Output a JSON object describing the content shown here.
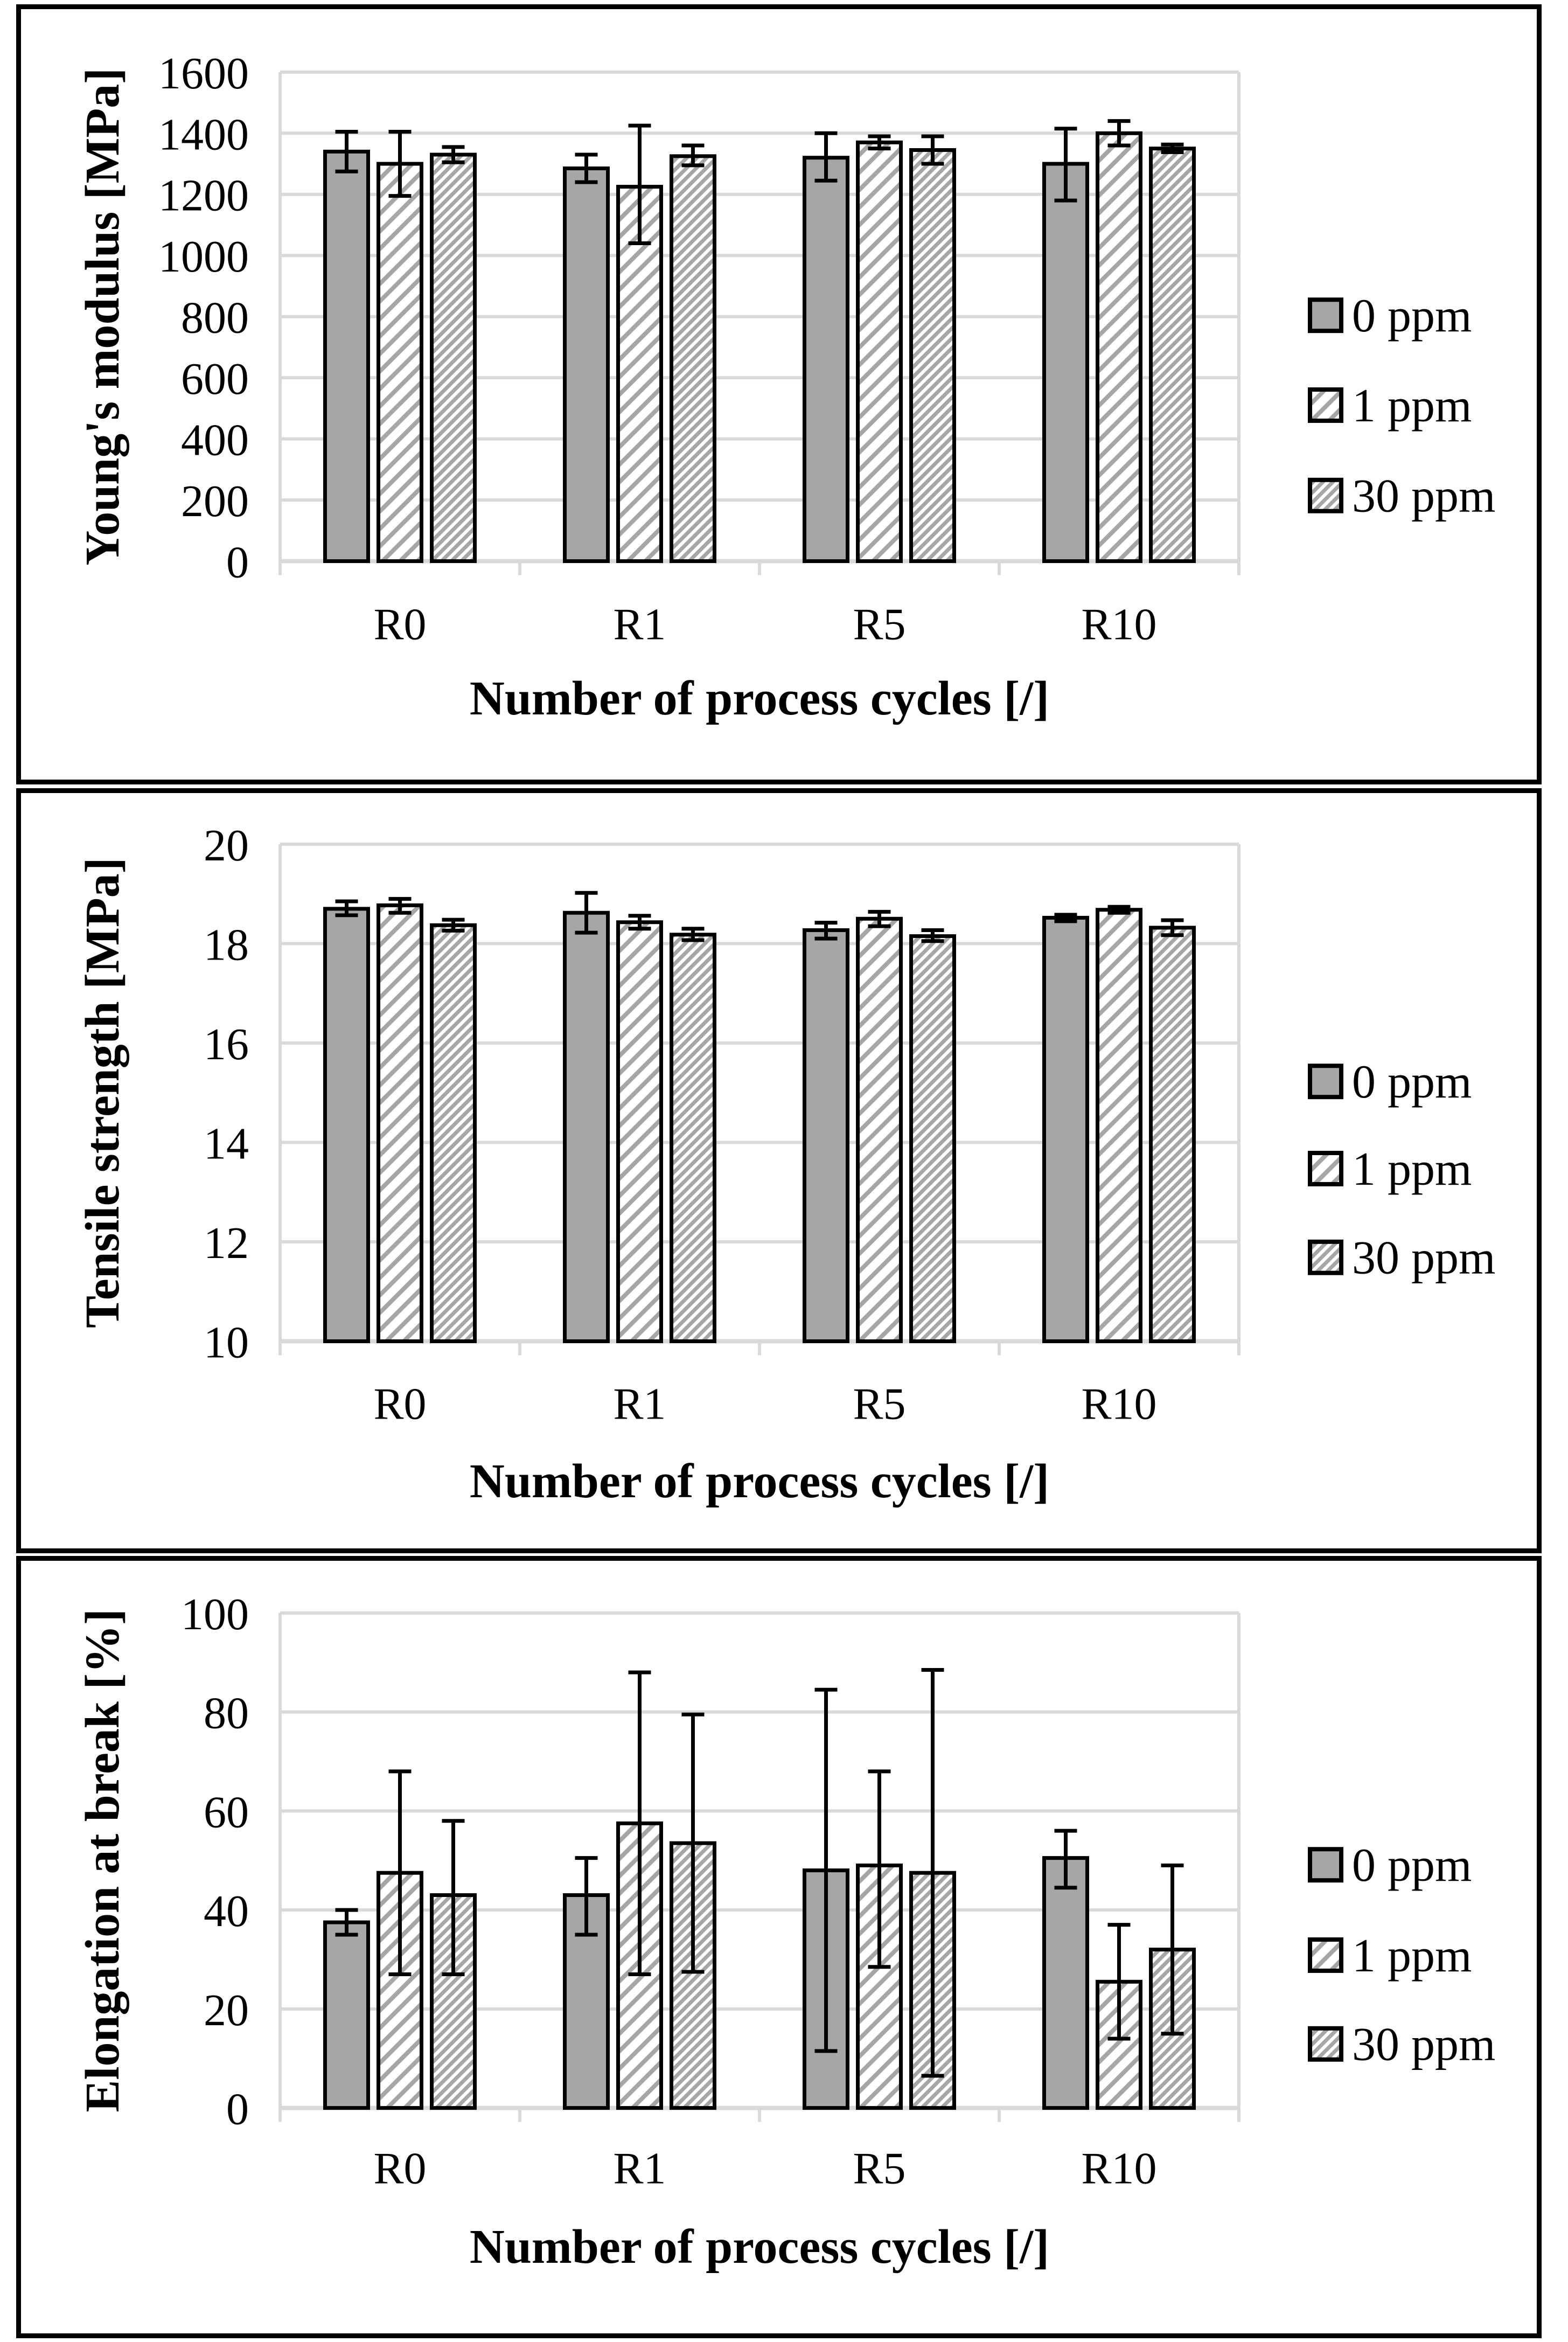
{
  "figure": {
    "description": "Three stacked bar charts of mechanical properties versus number of process cycles",
    "x_axis_title": "Number of process cycles [/]",
    "categories": [
      "R0",
      "R1",
      "R5",
      "R10"
    ],
    "legend_labels": [
      "0 ppm",
      "1 ppm",
      "30 ppm"
    ]
  },
  "colors": {
    "bar_gray": "#a6a6a6",
    "hatch_gray": "#a6a6a6",
    "grid": "#d9d9d9",
    "axis": "#d9d9d9",
    "outline": "#000000",
    "text": "#000000",
    "background": "#ffffff",
    "panel_border": "#000000"
  },
  "chart_data": [
    {
      "type": "bar",
      "title": "",
      "xlabel": "Number of process cycles [/]",
      "ylabel": "Young's modulus [MPa]",
      "categories": [
        "R0",
        "R1",
        "R5",
        "R10"
      ],
      "ylim": [
        0,
        1600
      ],
      "yticks": [
        1600,
        1400,
        1200,
        1000,
        800,
        600,
        400,
        200,
        0
      ],
      "grid": true,
      "legend_position": "right",
      "series": [
        {
          "name": "0 ppm",
          "pattern": "solid",
          "values": [
            1340,
            1285,
            1320,
            1300
          ],
          "err_low": [
            1275,
            1240,
            1245,
            1180
          ],
          "err_high": [
            1405,
            1330,
            1400,
            1415
          ]
        },
        {
          "name": "1 ppm",
          "pattern": "hatch-light",
          "values": [
            1300,
            1225,
            1370,
            1400
          ],
          "err_low": [
            1195,
            1040,
            1350,
            1360
          ],
          "err_high": [
            1405,
            1425,
            1390,
            1440
          ]
        },
        {
          "name": "30 ppm",
          "pattern": "hatch-dense",
          "values": [
            1330,
            1325,
            1345,
            1350
          ],
          "err_low": [
            1305,
            1295,
            1300,
            1338
          ],
          "err_high": [
            1355,
            1360,
            1390,
            1363
          ]
        }
      ]
    },
    {
      "type": "bar",
      "title": "",
      "xlabel": "Number of process cycles [/]",
      "ylabel": "Tensile strength [MPa]",
      "categories": [
        "R0",
        "R1",
        "R5",
        "R10"
      ],
      "ylim": [
        10,
        20
      ],
      "yticks": [
        20,
        18,
        16,
        14,
        12,
        10
      ],
      "grid": true,
      "legend_position": "right",
      "series": [
        {
          "name": "0 ppm",
          "pattern": "solid",
          "values": [
            18.7,
            18.62,
            18.27,
            18.52
          ],
          "err_low": [
            18.57,
            18.22,
            18.1,
            18.45
          ],
          "err_high": [
            18.85,
            19.02,
            18.42,
            18.58
          ]
        },
        {
          "name": "1 ppm",
          "pattern": "hatch-light",
          "values": [
            18.77,
            18.43,
            18.5,
            18.68
          ],
          "err_low": [
            18.62,
            18.3,
            18.35,
            18.62
          ],
          "err_high": [
            18.9,
            18.56,
            18.64,
            18.74
          ]
        },
        {
          "name": "30 ppm",
          "pattern": "hatch-dense",
          "values": [
            18.37,
            18.18,
            18.15,
            18.32
          ],
          "err_low": [
            18.26,
            18.07,
            18.05,
            18.17
          ],
          "err_high": [
            18.48,
            18.3,
            18.27,
            18.47
          ]
        }
      ]
    },
    {
      "type": "bar",
      "title": "",
      "xlabel": "Number of process cycles [/]",
      "ylabel": "Elongation at break [%]",
      "categories": [
        "R0",
        "R1",
        "R5",
        "R10"
      ],
      "ylim": [
        0,
        100
      ],
      "yticks": [
        100,
        80,
        60,
        40,
        20,
        0
      ],
      "grid": true,
      "legend_position": "right",
      "series": [
        {
          "name": "0 ppm",
          "pattern": "solid",
          "values": [
            37.5,
            43,
            48,
            50.5
          ],
          "err_low": [
            35,
            35,
            11.5,
            44.5
          ],
          "err_high": [
            40,
            50.5,
            84.5,
            56
          ]
        },
        {
          "name": "1 ppm",
          "pattern": "hatch-light",
          "values": [
            47.5,
            57.5,
            49,
            25.5
          ],
          "err_low": [
            27,
            27,
            28.5,
            14
          ],
          "err_high": [
            68,
            88,
            68,
            37
          ]
        },
        {
          "name": "30 ppm",
          "pattern": "hatch-dense",
          "values": [
            43,
            53.5,
            47.5,
            32
          ],
          "err_low": [
            27,
            27.5,
            6.5,
            15
          ],
          "err_high": [
            58,
            79.5,
            88.5,
            49
          ]
        }
      ]
    }
  ]
}
